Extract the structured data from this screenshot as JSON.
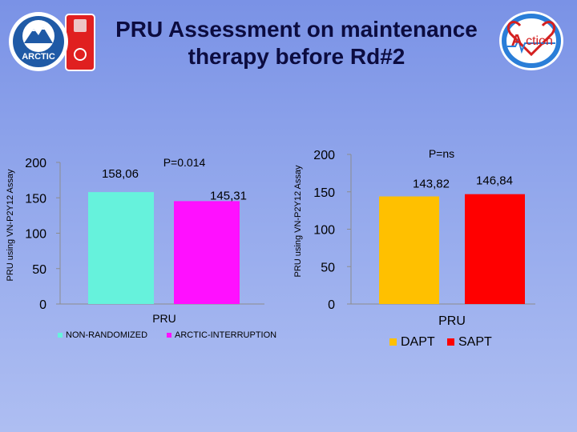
{
  "title_line1": "PRU Assessment on maintenance",
  "title_line2": "therapy before Rd#2",
  "logos": {
    "left_text": "ARCTIC",
    "right_text": "ction",
    "right_prefix": "A"
  },
  "chart_data": [
    {
      "type": "bar",
      "ylabel": "PRU using VN-P2Y12 Assay",
      "xlabel": "PRU",
      "ylim": [
        0,
        200
      ],
      "yticks": [
        "0",
        "50",
        "100",
        "150",
        "200"
      ],
      "pvalue": "P=0.014",
      "series": [
        {
          "name": "NON-RANDOMIZED",
          "values": [
            158.06
          ],
          "label": "158,06",
          "color": "#66f2dc"
        },
        {
          "name": "ARCTIC-INTERRUPTION",
          "values": [
            145.31
          ],
          "label": "145,31",
          "color": "#ff10ff"
        }
      ],
      "legend_position": "bottom"
    },
    {
      "type": "bar",
      "ylabel": "PRU using VN-P2Y12 Assay",
      "xlabel": "PRU",
      "ylim": [
        0,
        200
      ],
      "yticks": [
        "0",
        "50",
        "100",
        "150",
        "200"
      ],
      "pvalue": "P=ns",
      "series": [
        {
          "name": "DAPT",
          "values": [
            143.82
          ],
          "label": "143,82",
          "color": "#ffc000"
        },
        {
          "name": "SAPT",
          "values": [
            146.84
          ],
          "label": "146,84",
          "color": "#ff0000"
        }
      ],
      "legend_position": "bottom"
    }
  ]
}
